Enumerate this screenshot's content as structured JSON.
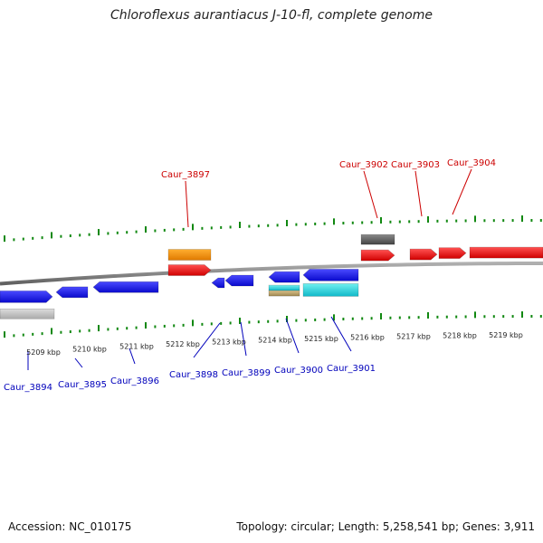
{
  "title": "Chloroflexus aurantiacus J-10-fl, complete genome",
  "footer": {
    "accession": "Accession: NC_010175",
    "summary": "Topology: circular; Length: 5,258,541 bp; Genes: 3,911"
  },
  "colors": {
    "forward_gene": "#ff0000",
    "reverse_gene": "#1010ee",
    "backbone": "#808080",
    "tick": "#118811",
    "label_forward": "#cc0000",
    "label_reverse": "#0000bb"
  },
  "scale": {
    "ticks": [
      "5209 kbp",
      "5210 kbp",
      "5211 kbp",
      "5212 kbp",
      "5213 kbp",
      "5214 kbp",
      "5215 kbp",
      "5216 kbp",
      "5217 kbp",
      "5218 kbp",
      "5219 kbp"
    ]
  },
  "gene_labels_forward": [
    "Caur_3897",
    "Caur_3902",
    "Caur_3903",
    "Caur_3904"
  ],
  "gene_labels_reverse": [
    "Caur_3894",
    "Caur_3895",
    "Caur_3896",
    "Caur_3898",
    "Caur_3899",
    "Caur_3900",
    "Caur_3901"
  ]
}
